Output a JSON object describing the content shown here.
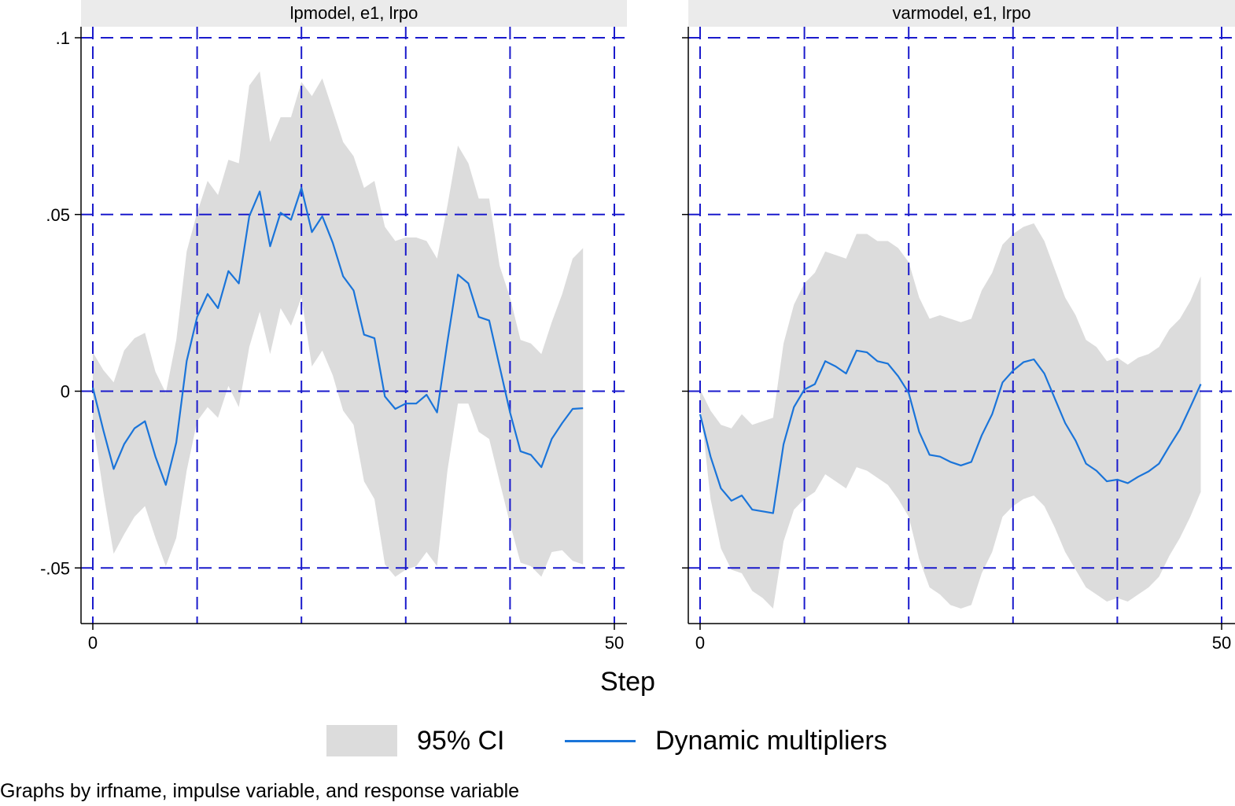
{
  "chart_data": {
    "type": "line",
    "xlabel": "Step",
    "note": "Graphs by irfname, impulse variable, and response variable",
    "legend": {
      "ci_label": "95% CI",
      "line_label": "Dynamic multipliers",
      "placement": "bottom"
    },
    "colors": {
      "line": "#1a74d9",
      "band": "#dcdcdc",
      "grid": "#1a1acc",
      "strip": "#ebebeb"
    },
    "xlim": [
      0,
      50
    ],
    "ylim": [
      -0.0655,
      0.1
    ],
    "xticks": [
      {
        "v": 0,
        "label": "0"
      },
      {
        "v": 50,
        "label": "50"
      }
    ],
    "yticks": [
      {
        "v": 0.1,
        "label": ".1"
      },
      {
        "v": 0.05,
        "label": ".05"
      },
      {
        "v": 0,
        "label": "0"
      },
      {
        "v": -0.05,
        "label": "-.05"
      }
    ],
    "xgrid": [
      0,
      10,
      20,
      30,
      40,
      50
    ],
    "ygrid": [
      -0.05,
      0,
      0.05,
      0.1
    ],
    "panels": [
      {
        "title": "lpmodel, e1, lrpo",
        "x": [
          0,
          1,
          2,
          3,
          4,
          5,
          6,
          7,
          8,
          9,
          10,
          11,
          12,
          13,
          14,
          15,
          16,
          17,
          18,
          19,
          20,
          21,
          22,
          23,
          24,
          25,
          26,
          27,
          28,
          29,
          30,
          31,
          32,
          33,
          34,
          35,
          36,
          37,
          38,
          39,
          40,
          41,
          42,
          43,
          44,
          45,
          46,
          47
        ],
        "y": [
          0.001,
          -0.011,
          -0.022,
          -0.015,
          -0.0105,
          -0.0085,
          -0.0185,
          -0.0265,
          -0.0145,
          0.0085,
          0.021,
          0.0275,
          0.0235,
          0.034,
          0.0305,
          0.0495,
          0.0565,
          0.041,
          0.0505,
          0.0485,
          0.0575,
          0.045,
          0.0495,
          0.042,
          0.0325,
          0.0285,
          0.016,
          0.015,
          -0.0015,
          -0.005,
          -0.0035,
          -0.0035,
          -0.001,
          -0.006,
          0.014,
          0.033,
          0.0305,
          0.021,
          0.02,
          0.007,
          -0.006,
          -0.017,
          -0.018,
          -0.0215,
          -0.0135,
          -0.009,
          -0.005,
          -0.0048
        ],
        "lower": [
          -0.0085,
          -0.0285,
          -0.046,
          -0.0405,
          -0.0355,
          -0.0325,
          -0.0415,
          -0.0495,
          -0.0415,
          -0.0225,
          -0.0085,
          -0.0045,
          -0.0075,
          0.0015,
          -0.0045,
          0.0125,
          0.0225,
          0.0105,
          0.0235,
          0.0185,
          0.0265,
          0.007,
          0.0115,
          0.0045,
          -0.0055,
          -0.0095,
          -0.0255,
          -0.0305,
          -0.049,
          -0.0525,
          -0.0505,
          -0.0495,
          -0.0455,
          -0.0495,
          -0.0225,
          -0.0035,
          -0.0035,
          -0.0115,
          -0.0135,
          -0.0255,
          -0.0375,
          -0.0485,
          -0.0495,
          -0.0525,
          -0.0455,
          -0.045,
          -0.048,
          -0.049
        ],
        "upper": [
          0.011,
          0.006,
          0.0025,
          0.0115,
          0.015,
          0.0165,
          0.0055,
          -0.0005,
          0.0145,
          0.0395,
          0.0505,
          0.0595,
          0.0555,
          0.0655,
          0.0645,
          0.0865,
          0.0905,
          0.0705,
          0.0775,
          0.0775,
          0.0875,
          0.0835,
          0.0885,
          0.0795,
          0.0705,
          0.0665,
          0.0575,
          0.0595,
          0.0465,
          0.0425,
          0.0435,
          0.0435,
          0.0425,
          0.0375,
          0.0525,
          0.0695,
          0.0645,
          0.0545,
          0.0545,
          0.0355,
          0.0265,
          0.0145,
          0.0135,
          0.0105,
          0.0195,
          0.0275,
          0.0375,
          0.0405
        ]
      },
      {
        "title": "varmodel, e1, lrpo",
        "x": [
          0,
          1,
          2,
          3,
          4,
          5,
          6,
          7,
          8,
          9,
          10,
          11,
          12,
          13,
          14,
          15,
          16,
          17,
          18,
          19,
          20,
          21,
          22,
          23,
          24,
          25,
          26,
          27,
          28,
          29,
          30,
          31,
          32,
          33,
          34,
          35,
          36,
          37,
          38,
          39,
          40,
          41,
          42,
          43,
          44,
          45,
          46,
          47,
          48
        ],
        "y": [
          -0.0065,
          -0.0185,
          -0.0275,
          -0.031,
          -0.0295,
          -0.0335,
          -0.034,
          -0.0345,
          -0.015,
          -0.0045,
          0.0005,
          0.002,
          0.0085,
          0.007,
          0.005,
          0.0115,
          0.011,
          0.0085,
          0.0078,
          0.0042,
          -0.0005,
          -0.0115,
          -0.018,
          -0.0185,
          -0.02,
          -0.021,
          -0.02,
          -0.0125,
          -0.0065,
          0.0025,
          0.0058,
          0.0082,
          0.009,
          0.005,
          -0.002,
          -0.009,
          -0.014,
          -0.0205,
          -0.0225,
          -0.0255,
          -0.025,
          -0.026,
          -0.0242,
          -0.0227,
          -0.0205,
          -0.0155,
          -0.0108,
          -0.0045,
          0.002
        ],
        "lower": [
          -0.0035,
          -0.0305,
          -0.0445,
          -0.0505,
          -0.0515,
          -0.0565,
          -0.0585,
          -0.0615,
          -0.0425,
          -0.0335,
          -0.0305,
          -0.0285,
          -0.0235,
          -0.0255,
          -0.0275,
          -0.0215,
          -0.0225,
          -0.0245,
          -0.0265,
          -0.0305,
          -0.0355,
          -0.0475,
          -0.0555,
          -0.0575,
          -0.0605,
          -0.0615,
          -0.0605,
          -0.0515,
          -0.0455,
          -0.0355,
          -0.0325,
          -0.0305,
          -0.0295,
          -0.0325,
          -0.0385,
          -0.0455,
          -0.0505,
          -0.0555,
          -0.0575,
          -0.0595,
          -0.0585,
          -0.0595,
          -0.0575,
          -0.0555,
          -0.0525,
          -0.0465,
          -0.0415,
          -0.0355,
          -0.0285
        ],
        "upper": [
          0.0005,
          -0.0055,
          -0.0095,
          -0.0105,
          -0.0065,
          -0.0095,
          -0.0085,
          -0.0075,
          0.0135,
          0.0245,
          0.0305,
          0.0335,
          0.0395,
          0.0385,
          0.0375,
          0.0445,
          0.0445,
          0.0425,
          0.0425,
          0.0405,
          0.0365,
          0.0265,
          0.0205,
          0.0215,
          0.0205,
          0.0195,
          0.0205,
          0.0285,
          0.0335,
          0.0415,
          0.0445,
          0.0465,
          0.0475,
          0.0425,
          0.0345,
          0.0265,
          0.0215,
          0.0145,
          0.0125,
          0.0085,
          0.0095,
          0.0075,
          0.0095,
          0.0105,
          0.0125,
          0.0175,
          0.0205,
          0.0255,
          0.0325
        ]
      }
    ]
  }
}
